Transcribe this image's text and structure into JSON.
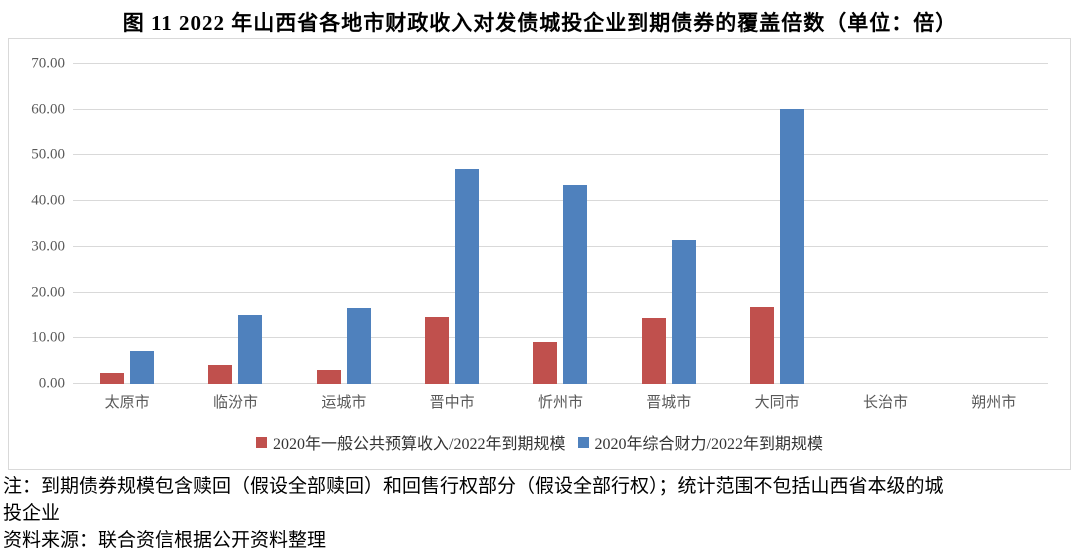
{
  "title": "图 11  2022 年山西省各地市财政收入对发债城投企业到期债券的覆盖倍数（单位：倍）",
  "chart_data": {
    "type": "bar",
    "title": "图 11  2022 年山西省各地市财政收入对发债城投企业到期债券的覆盖倍数（单位：倍）",
    "categories": [
      "太原市",
      "临汾市",
      "运城市",
      "晋中市",
      "忻州市",
      "晋城市",
      "大同市",
      "长治市",
      "朔州市"
    ],
    "series": [
      {
        "name": "2020年一般公共预算收入/2022年到期规模",
        "color": "#c0504d",
        "values": [
          2.4,
          4.1,
          3.1,
          14.6,
          9.3,
          14.4,
          16.8,
          0,
          0
        ]
      },
      {
        "name": "2020年综合财力/2022年到期规模",
        "color": "#4f81bd",
        "values": [
          7.2,
          15.1,
          16.7,
          47.1,
          43.6,
          31.6,
          60.2,
          0,
          0
        ]
      }
    ],
    "xlabel": "",
    "ylabel": "",
    "ylim": [
      0,
      70
    ],
    "y_ticks": [
      "0.00",
      "10.00",
      "20.00",
      "30.00",
      "40.00",
      "50.00",
      "60.00",
      "70.00"
    ],
    "grid": true,
    "legend_position": "bottom"
  },
  "notes": {
    "note_lines": [
      "注：到期债券规模包含赎回（假设全部赎回）和回售行权部分（假设全部行权）；统计范围不包括山西省本级的城",
      "投企业"
    ],
    "source_line": "资料来源：联合资信根据公开资料整理"
  },
  "colors": {
    "series1": "#c0504d",
    "series2": "#4f81bd",
    "gridline": "#d9d9d9",
    "axis_text": "#595959",
    "border": "#d9d9d9"
  }
}
